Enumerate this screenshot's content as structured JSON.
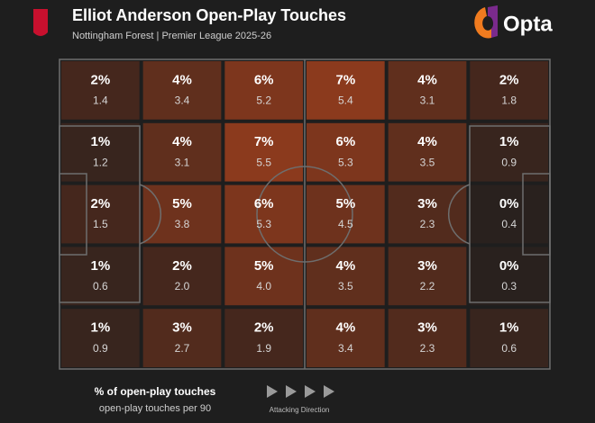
{
  "chart_data": {
    "type": "heatmap",
    "title": "Elliot Anderson Open-Play Touches",
    "subtitle": "Nottingham Forest | Premier League 2025-26",
    "brand": "Opta",
    "annotation": "Attacking Direction",
    "color": "#e0501c",
    "series": [
      {
        "name": "% of open-play touches",
        "values": [
          [
            2,
            4,
            6,
            7,
            4,
            2
          ],
          [
            1,
            4,
            7,
            6,
            4,
            1
          ],
          [
            2,
            5,
            6,
            5,
            3,
            0
          ],
          [
            1,
            2,
            5,
            4,
            3,
            0
          ],
          [
            1,
            3,
            2,
            4,
            3,
            1
          ]
        ],
        "value_labels": [
          [
            "2%",
            "4%",
            "6%",
            "7%",
            "4%",
            "2%"
          ],
          [
            "1%",
            "4%",
            "7%",
            "6%",
            "4%",
            "1%"
          ],
          [
            "2%",
            "5%",
            "6%",
            "5%",
            "3%",
            "0%"
          ],
          [
            "1%",
            "2%",
            "5%",
            "4%",
            "3%",
            "0%"
          ],
          [
            "1%",
            "3%",
            "2%",
            "4%",
            "3%",
            "1%"
          ]
        ]
      },
      {
        "name": "open-play touches per 90",
        "values": [
          [
            1.4,
            3.4,
            5.2,
            5.4,
            3.1,
            1.8
          ],
          [
            1.2,
            3.1,
            5.5,
            5.3,
            3.5,
            0.9
          ],
          [
            1.5,
            3.8,
            5.3,
            4.5,
            2.3,
            0.4
          ],
          [
            0.6,
            2.0,
            4.0,
            3.5,
            2.2,
            0.3
          ],
          [
            0.9,
            2.7,
            1.9,
            3.4,
            2.3,
            0.6
          ]
        ],
        "value_labels": [
          [
            "1.4",
            "3.4",
            "5.2",
            "5.4",
            "3.1",
            "1.8"
          ],
          [
            "1.2",
            "3.1",
            "5.5",
            "5.3",
            "3.5",
            "0.9"
          ],
          [
            "1.5",
            "3.8",
            "5.3",
            "4.5",
            "2.3",
            "0.4"
          ],
          [
            "0.6",
            "2.0",
            "4.0",
            "3.5",
            "2.2",
            "0.3"
          ],
          [
            "0.9",
            "2.7",
            "1.9",
            "3.4",
            "2.3",
            "0.6"
          ]
        ]
      }
    ]
  }
}
